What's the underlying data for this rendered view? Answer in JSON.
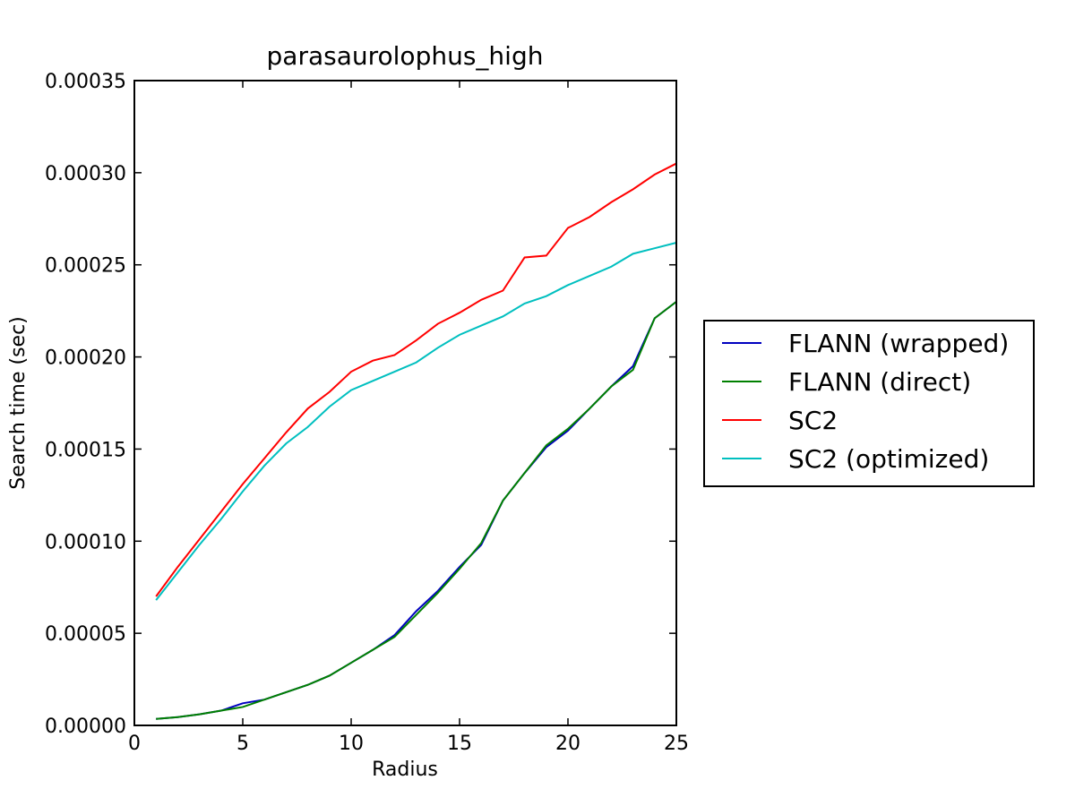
{
  "chart_data": {
    "type": "line",
    "title": "parasaurolophus_high",
    "xlabel": "Radius",
    "ylabel": "Search time (sec)",
    "xlim": [
      0,
      25
    ],
    "ylim": [
      0,
      0.00035
    ],
    "x_ticks": [
      "0",
      "5",
      "10",
      "15",
      "20",
      "25"
    ],
    "y_ticks": [
      "0.00000",
      "0.00005",
      "0.00010",
      "0.00015",
      "0.00020",
      "0.00025",
      "0.00030",
      "0.00035"
    ],
    "grid": false,
    "legend_position": "outside-right",
    "x": [
      1,
      2,
      3,
      4,
      5,
      6,
      7,
      8,
      9,
      10,
      11,
      12,
      13,
      14,
      15,
      16,
      17,
      18,
      19,
      20,
      21,
      22,
      23,
      24,
      25
    ],
    "series": [
      {
        "name": "FLANN (wrapped)",
        "color": "#0000bf",
        "values": [
          3.5e-06,
          4.5e-06,
          6e-06,
          8e-06,
          1.2e-05,
          1.4e-05,
          1.8e-05,
          2.2e-05,
          2.7e-05,
          3.4e-05,
          4.1e-05,
          4.9e-05,
          6.2e-05,
          7.3e-05,
          8.6e-05,
          9.8e-05,
          0.000122,
          0.000137,
          0.000151,
          0.00016,
          0.000172,
          0.000184,
          0.000195,
          0.000221,
          0.00023
        ]
      },
      {
        "name": "FLANN (direct)",
        "color": "#008000",
        "values": [
          3.5e-06,
          4.5e-06,
          6e-06,
          8e-06,
          1e-05,
          1.4e-05,
          1.8e-05,
          2.2e-05,
          2.7e-05,
          3.4e-05,
          4.1e-05,
          4.8e-05,
          6e-05,
          7.2e-05,
          8.5e-05,
          9.9e-05,
          0.000122,
          0.000137,
          0.000152,
          0.000161,
          0.000172,
          0.000184,
          0.000193,
          0.000221,
          0.00023
        ]
      },
      {
        "name": "SC2",
        "color": "#ff0000",
        "values": [
          7e-05,
          8.6e-05,
          0.000101,
          0.000116,
          0.000131,
          0.000145,
          0.000159,
          0.000172,
          0.000181,
          0.000192,
          0.000198,
          0.000201,
          0.000209,
          0.000218,
          0.000224,
          0.000231,
          0.000236,
          0.000254,
          0.000255,
          0.00027,
          0.000276,
          0.000284,
          0.000291,
          0.000299,
          0.000305
        ]
      },
      {
        "name": "SC2 (optimized)",
        "color": "#00bfbf",
        "values": [
          6.8e-05,
          8.3e-05,
          9.8e-05,
          0.000112,
          0.000127,
          0.000141,
          0.000153,
          0.000162,
          0.000173,
          0.000182,
          0.000187,
          0.000192,
          0.000197,
          0.000205,
          0.000212,
          0.000217,
          0.000222,
          0.000229,
          0.000233,
          0.000239,
          0.000244,
          0.000249,
          0.000256,
          0.000259,
          0.000262
        ]
      }
    ]
  }
}
